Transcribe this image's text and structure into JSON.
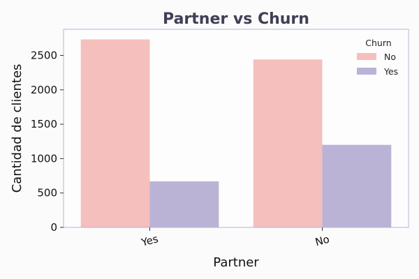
{
  "chart_data": {
    "type": "bar",
    "title": "Partner vs Churn",
    "xlabel": "Partner",
    "ylabel": "Cantidad de clientes",
    "categories": [
      "Yes",
      "No"
    ],
    "series": [
      {
        "name": "No",
        "values": [
          2733,
          2441
        ]
      },
      {
        "name": "Yes",
        "values": [
          669,
          1200
        ]
      }
    ],
    "ylim": [
      0,
      2880
    ],
    "yticks": [
      0,
      500,
      1000,
      1500,
      2000,
      2500
    ],
    "legend": {
      "title": "Churn",
      "position": "top-right"
    },
    "colors": {
      "No": "#f5bfbd",
      "Yes": "#bab3d6",
      "frame": "#b7b2dc"
    },
    "grid": false
  }
}
